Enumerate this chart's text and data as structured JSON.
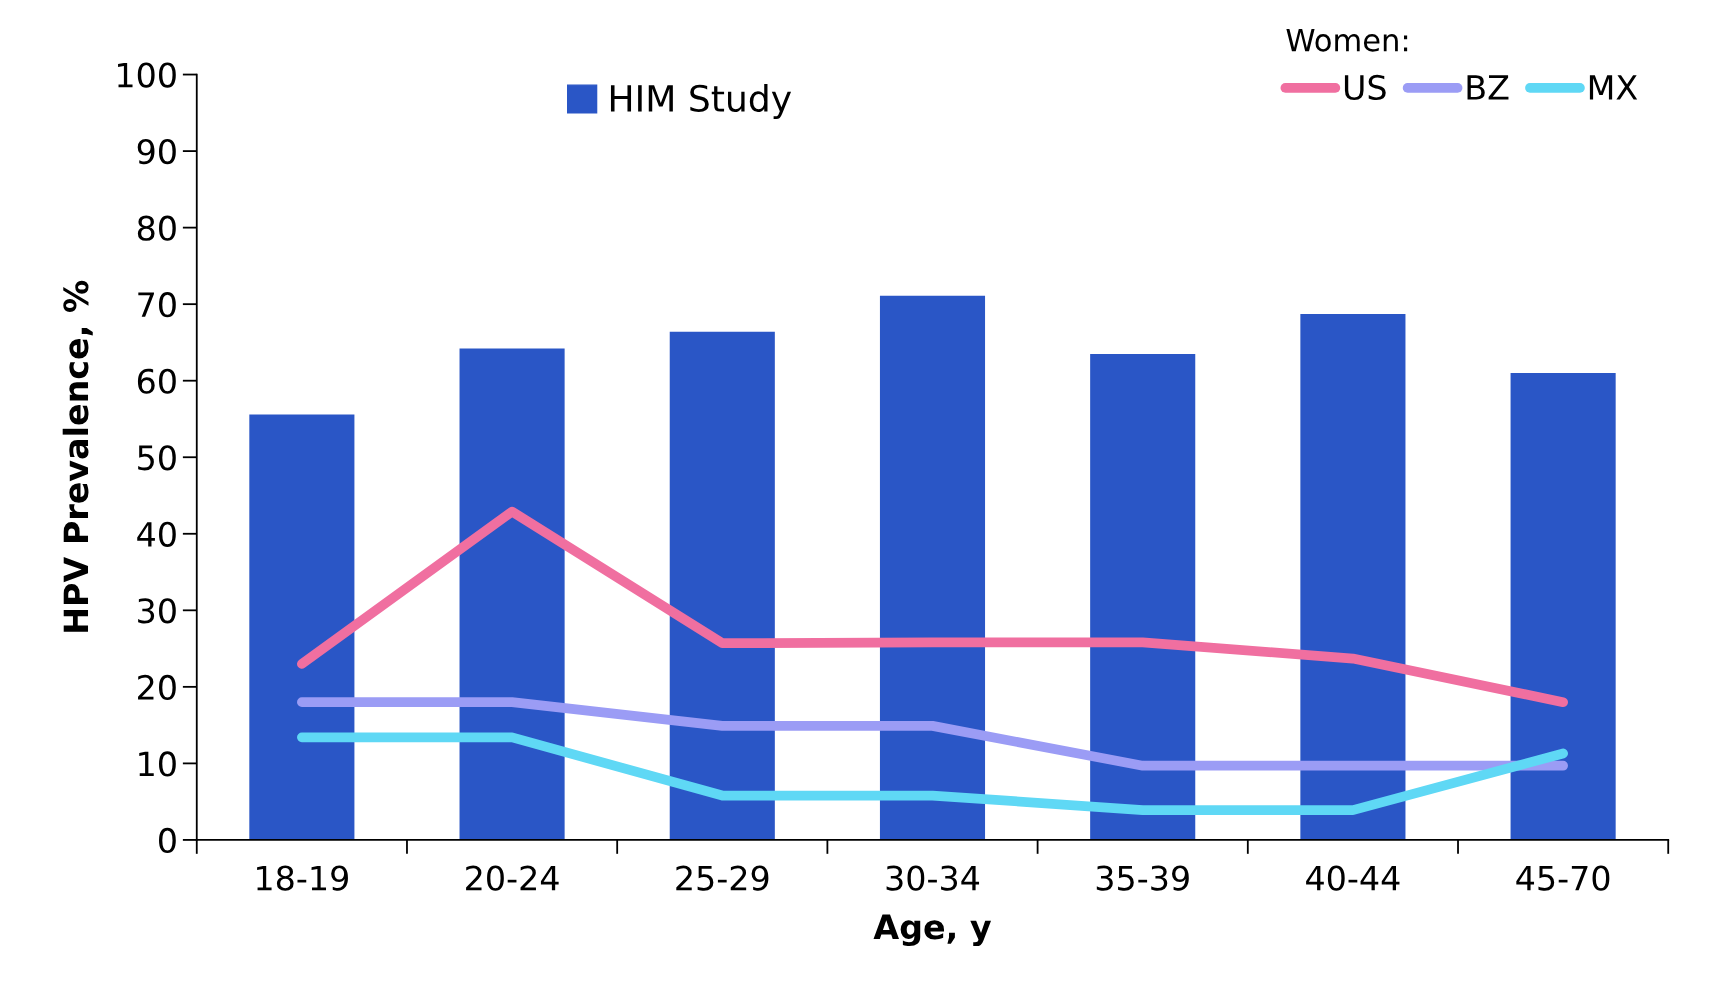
{
  "chart_data": {
    "type": "bar",
    "xlabel": "Age, y",
    "ylabel": "HPV Prevalence, %",
    "legend_title": "Women:",
    "categories": [
      "18-19",
      "20-24",
      "25-29",
      "30-34",
      "35-39",
      "40-44",
      "45-70"
    ],
    "series": [
      {
        "name": "HIM Study",
        "color": "#2a56c6",
        "values": [
          55.6,
          64.2,
          66.4,
          71.1,
          63.5,
          68.7,
          61.0
        ]
      },
      {
        "name": "US",
        "type": "line",
        "color": "#f06fa0",
        "values": [
          23,
          42.9,
          25.7,
          25.8,
          25.8,
          23.7,
          18
        ]
      },
      {
        "name": "BZ",
        "type": "line",
        "color": "#9b9cf5",
        "values": [
          18,
          18,
          14.9,
          14.9,
          9.7,
          9.7,
          9.7
        ]
      },
      {
        "name": "MX",
        "type": "line",
        "color": "#5fd8f5",
        "values": [
          13.4,
          13.4,
          5.8,
          5.8,
          3.9,
          3.9,
          11.3
        ]
      }
    ],
    "ylim": [
      0,
      100
    ],
    "yticks": [
      0,
      10,
      20,
      30,
      40,
      50,
      60,
      70,
      80,
      90,
      100
    ],
    "grid": false,
    "legend": "top right"
  }
}
